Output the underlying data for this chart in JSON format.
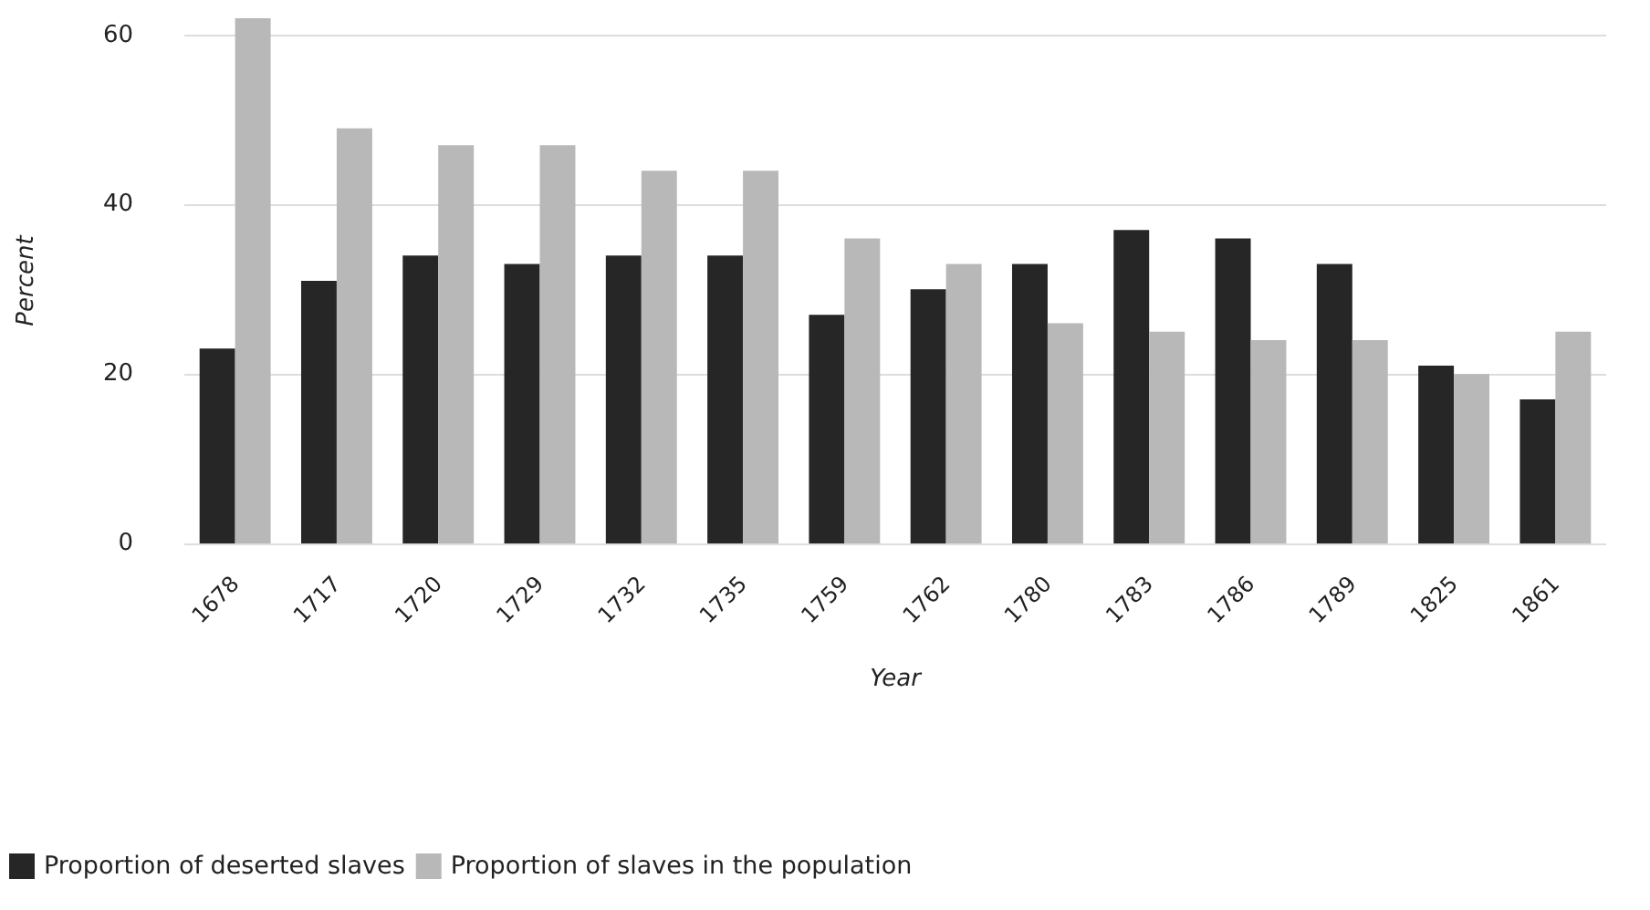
{
  "chart_data": {
    "type": "bar",
    "xlabel": "Year",
    "ylabel": "Percent",
    "categories": [
      "1678",
      "1717",
      "1720",
      "1729",
      "1732",
      "1735",
      "1759",
      "1762",
      "1780",
      "1783",
      "1786",
      "1789",
      "1825",
      "1861"
    ],
    "series": [
      {
        "name": "Proportion of deserted slaves",
        "color": "#262626",
        "values": [
          23,
          31,
          34,
          33,
          34,
          34,
          27,
          30,
          33,
          37,
          36,
          33,
          21,
          17
        ]
      },
      {
        "name": "Proportion of slaves in the population",
        "color": "#b8b8b8",
        "values": [
          62,
          49,
          47,
          47,
          44,
          44,
          36,
          33,
          26,
          25,
          24,
          24,
          20,
          25
        ]
      }
    ],
    "ylim": [
      0,
      62
    ],
    "yticks": [
      0,
      20,
      40,
      60
    ],
    "grid": "y",
    "legend": "bottom left"
  }
}
